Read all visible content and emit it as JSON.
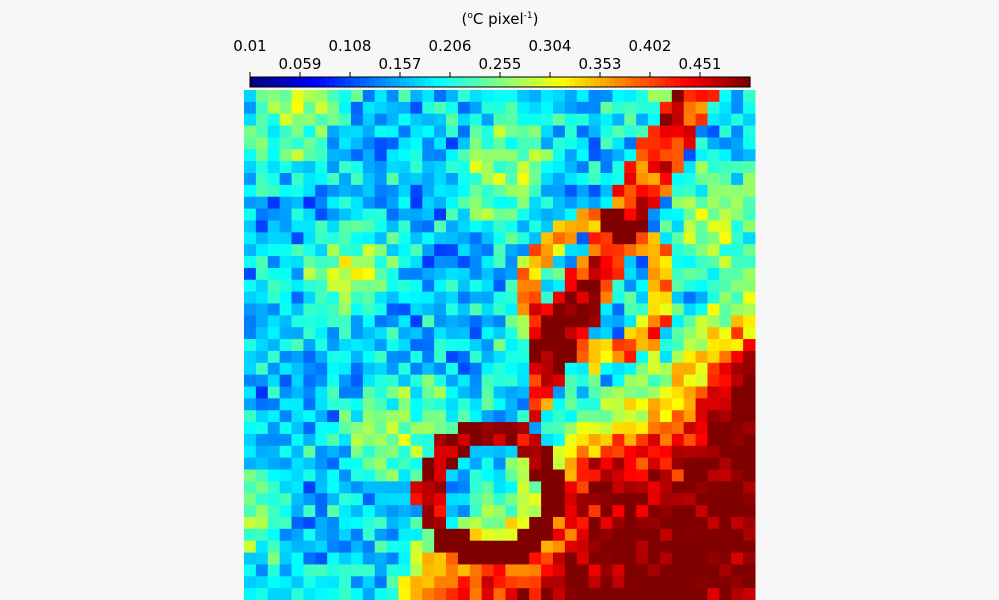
{
  "chart_data": {
    "type": "heatmap",
    "title": "",
    "colorbar": {
      "label_open": "(",
      "label_deg": "o",
      "label_unit": "C pixel",
      "label_exp": "-1",
      "label_close": ")",
      "min": 0.01,
      "max": 0.5,
      "ticks_top": [
        0.01,
        0.108,
        0.206,
        0.304,
        0.402
      ],
      "ticks_bottom": [
        0.059,
        0.157,
        0.255,
        0.353,
        0.451
      ],
      "colormap": "jet"
    },
    "grid": {
      "cols": 43,
      "rows_visible": 43,
      "description_regions": [
        {
          "region": "upper-left",
          "level": "low"
        },
        {
          "region": "lower-right",
          "level": "high"
        }
      ]
    }
  }
}
